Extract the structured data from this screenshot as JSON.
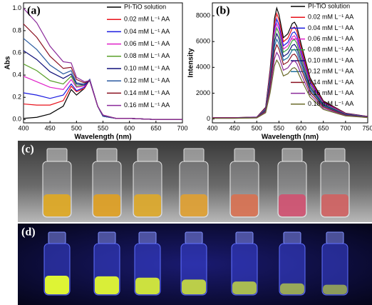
{
  "chart_data": [
    {
      "type": "line",
      "label": "(a)",
      "y_label": "Abs",
      "x_label": "Wavelength (nm)",
      "x": [
        400,
        425,
        450,
        475,
        490,
        500,
        515,
        525,
        540,
        550,
        575,
        600,
        650,
        700
      ],
      "xlim": [
        400,
        700
      ],
      "xticks": [
        400,
        450,
        500,
        550,
        600,
        650,
        700
      ],
      "ylim": [
        -0.03,
        1.05
      ],
      "yticks": [
        {
          "value": 0,
          "label": "0.0"
        },
        0.2,
        0.4,
        0.6,
        0.8,
        {
          "value": 1,
          "label": "1.0"
        }
      ],
      "series": [
        {
          "name": "PI-TiO solution",
          "color": "#000000",
          "values": [
            0.01,
            0.02,
            0.05,
            0.12,
            0.27,
            0.22,
            0.28,
            0.36,
            0.12,
            0.03,
            0.01,
            0.01,
            0,
            0
          ]
        },
        {
          "name": "0.02 mM L⁻¹ AA",
          "color": "#e8101a",
          "values": [
            0.14,
            0.13,
            0.13,
            0.17,
            0.3,
            0.25,
            0.28,
            0.36,
            0.12,
            0.03,
            0.01,
            0.01,
            0,
            0
          ]
        },
        {
          "name": "0.04 mM L⁻¹ AA",
          "color": "#1a1ae0",
          "values": [
            0.24,
            0.22,
            0.19,
            0.22,
            0.32,
            0.26,
            0.29,
            0.36,
            0.12,
            0.03,
            0.01,
            0.01,
            0,
            0
          ]
        },
        {
          "name": "0.06 mM L⁻¹ AA",
          "color": "#e020c8",
          "values": [
            0.39,
            0.34,
            0.29,
            0.27,
            0.36,
            0.29,
            0.3,
            0.36,
            0.12,
            0.03,
            0.01,
            0.01,
            0,
            0
          ]
        },
        {
          "name": "0.08 mM L⁻¹ AA",
          "color": "#5aa02a",
          "values": [
            0.5,
            0.44,
            0.35,
            0.32,
            0.39,
            0.3,
            0.31,
            0.35,
            0.12,
            0.03,
            0.01,
            0.01,
            0,
            0
          ]
        },
        {
          "name": "0.10 mM L⁻¹ AA",
          "color": "#10107a",
          "values": [
            0.62,
            0.54,
            0.43,
            0.37,
            0.41,
            0.32,
            0.31,
            0.35,
            0.12,
            0.03,
            0.01,
            0.01,
            0,
            0
          ]
        },
        {
          "name": "0.12 mM L⁻¹ AA",
          "color": "#2a5aa0",
          "values": [
            0.73,
            0.63,
            0.49,
            0.41,
            0.44,
            0.33,
            0.32,
            0.36,
            0.12,
            0.03,
            0.01,
            0.01,
            0,
            0
          ]
        },
        {
          "name": "0.14 mM L⁻¹ AA",
          "color": "#8a1020",
          "values": [
            0.86,
            0.74,
            0.57,
            0.46,
            0.47,
            0.36,
            0.33,
            0.35,
            0.12,
            0.04,
            0.01,
            0.01,
            0,
            0
          ]
        },
        {
          "name": "0.16 mM L⁻¹ AA",
          "color": "#8a2a9a",
          "values": [
            1.0,
            0.87,
            0.66,
            0.52,
            0.51,
            0.38,
            0.34,
            0.35,
            0.12,
            0.04,
            0.01,
            0.01,
            0,
            0
          ]
        }
      ]
    },
    {
      "type": "line",
      "label": "(b)",
      "y_label": "Intensity",
      "x_label": "Wavelength (nm)",
      "x": [
        400,
        450,
        500,
        520,
        530,
        540,
        545,
        550,
        560,
        570,
        580,
        585,
        590,
        600,
        620,
        650,
        700,
        750
      ],
      "xlim": [
        400,
        750
      ],
      "xticks": [
        400,
        450,
        500,
        550,
        600,
        650,
        700,
        750
      ],
      "ylim": [
        -300,
        9000
      ],
      "yticks": [
        0,
        2000,
        4000,
        6000,
        8000
      ],
      "series": [
        {
          "name": "PI-TiO solution",
          "color": "#000000",
          "values": [
            100,
            100,
            150,
            900,
            3800,
            7800,
            8600,
            8100,
            6300,
            6600,
            7400,
            7500,
            7200,
            5800,
            3200,
            1400,
            450,
            200
          ]
        },
        {
          "name": "0.02 mM L⁻¹ AA",
          "color": "#e8101a",
          "values": [
            100,
            100,
            140,
            860,
            3610,
            7410,
            8170,
            7700,
            5990,
            6270,
            7030,
            7130,
            6840,
            5510,
            3040,
            1330,
            430,
            190
          ]
        },
        {
          "name": "0.04 mM L⁻¹ AA",
          "color": "#1a1ae0",
          "values": [
            90,
            90,
            135,
            810,
            3420,
            7020,
            7740,
            7290,
            5670,
            5940,
            6660,
            6750,
            6480,
            5220,
            2880,
            1260,
            405,
            180
          ]
        },
        {
          "name": "0.06 mM L⁻¹ AA",
          "color": "#e020c8",
          "values": [
            90,
            90,
            130,
            770,
            3270,
            6710,
            7400,
            6970,
            5420,
            5680,
            6360,
            6450,
            6190,
            4990,
            2750,
            1200,
            390,
            170
          ]
        },
        {
          "name": "0.08 mM L⁻¹ AA",
          "color": "#3aa03a",
          "values": [
            80,
            80,
            120,
            740,
            3120,
            6400,
            7050,
            6640,
            5170,
            5410,
            6070,
            6150,
            5900,
            4760,
            2620,
            1150,
            370,
            160
          ]
        },
        {
          "name": "0.10 mM L⁻¹ AA",
          "color": "#10107a",
          "values": [
            80,
            80,
            120,
            690,
            2930,
            6010,
            6620,
            6240,
            4850,
            5080,
            5700,
            5780,
            5540,
            4470,
            2460,
            1080,
            350,
            150
          ]
        },
        {
          "name": "0.12 mM L⁻¹ AA",
          "color": "#1f6f9f",
          "values": [
            70,
            70,
            110,
            650,
            2740,
            5620,
            6190,
            5830,
            4540,
            4750,
            5330,
            5400,
            5180,
            4180,
            2300,
            1010,
            320,
            140
          ]
        },
        {
          "name": "0.14 mM L⁻¹ AA",
          "color": "#8a1020",
          "values": [
            70,
            70,
            100,
            600,
            2550,
            5230,
            5760,
            5430,
            4220,
            4420,
            4960,
            5030,
            4820,
            3890,
            2140,
            940,
            300,
            130
          ]
        },
        {
          "name": "0.16 mM L⁻¹ AA",
          "color": "#8a2a9a",
          "values": [
            60,
            60,
            90,
            540,
            2280,
            4680,
            5160,
            4860,
            3780,
            3960,
            4440,
            4500,
            4320,
            3480,
            1920,
            840,
            270,
            120
          ]
        },
        {
          "name": "0.18 mM L⁻¹ AA",
          "color": "#6b6b2b",
          "values": [
            50,
            50,
            80,
            480,
            2010,
            4130,
            4560,
            4290,
            3340,
            3500,
            3920,
            3980,
            3820,
            3070,
            1700,
            740,
            240,
            110
          ]
        }
      ]
    }
  ],
  "photos": [
    {
      "label": "(c)"
    },
    {
      "label": "(d)"
    }
  ]
}
